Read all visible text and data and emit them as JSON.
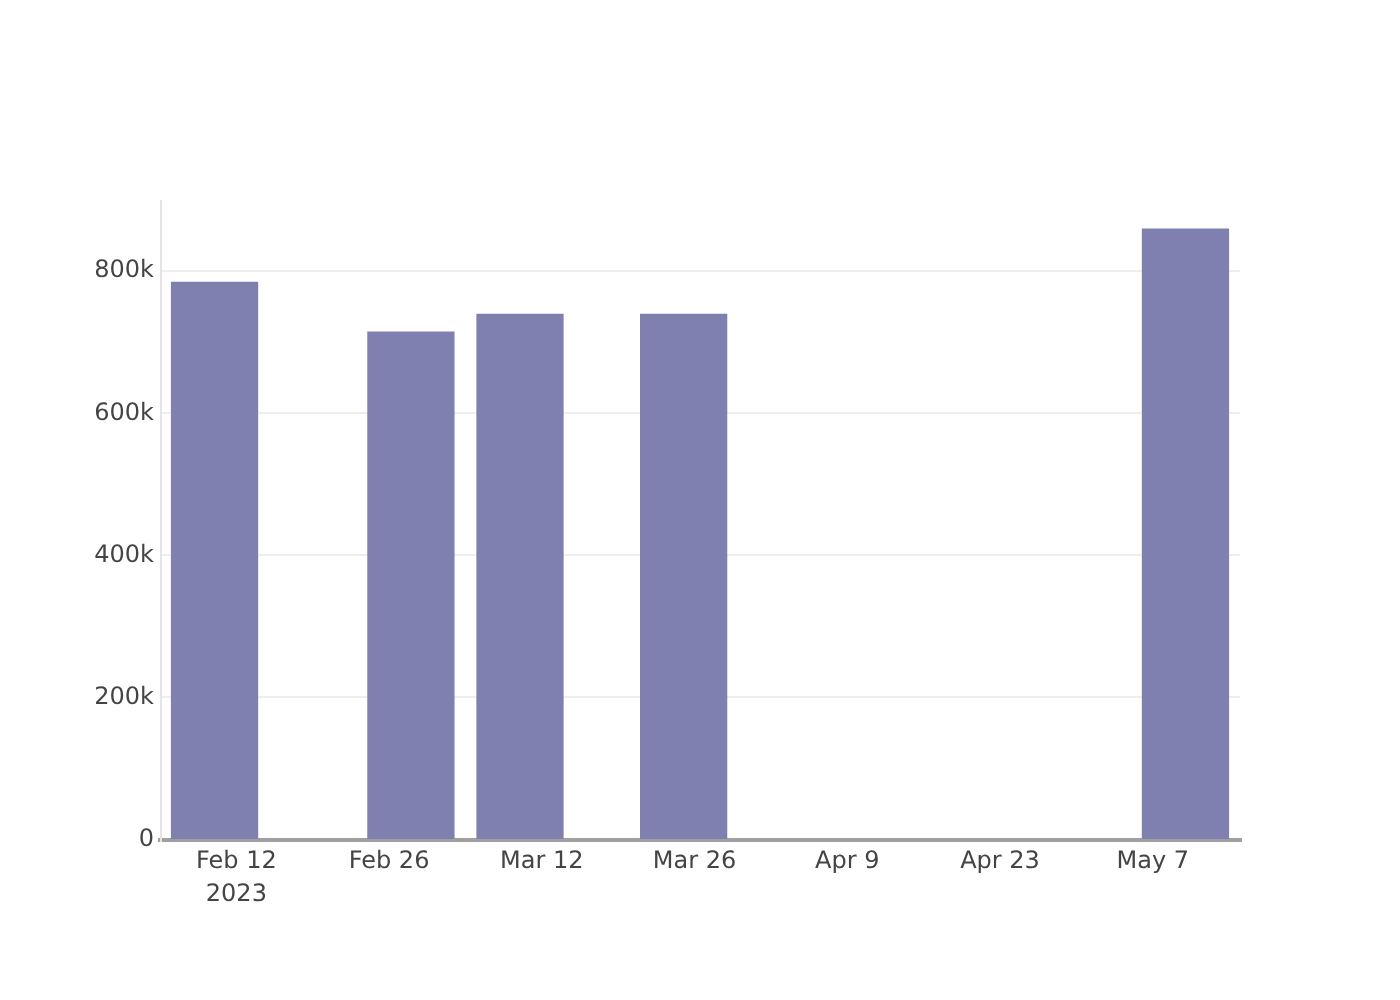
{
  "chart_data": {
    "type": "bar",
    "x": [
      "2023-02-10",
      "2023-02-28",
      "2023-03-10",
      "2023-03-25",
      "2023-05-10"
    ],
    "values": [
      785000,
      715000,
      740000,
      740000,
      860000
    ],
    "color": "#8080b0",
    "xlim": [
      "2023-02-05",
      "2023-05-15"
    ],
    "xticks": [
      {
        "value": "2023-02-12",
        "label": "Feb 12\n2023"
      },
      {
        "value": "2023-02-26",
        "label": "Feb 26"
      },
      {
        "value": "2023-03-12",
        "label": "Mar 12"
      },
      {
        "value": "2023-03-26",
        "label": "Mar 26"
      },
      {
        "value": "2023-04-09",
        "label": "Apr 9"
      },
      {
        "value": "2023-04-23",
        "label": "Apr 23"
      },
      {
        "value": "2023-05-07",
        "label": "May 7"
      }
    ],
    "ylim": [
      0,
      900000
    ],
    "yticks": [
      0,
      {
        "value": 200000,
        "label": "200k"
      },
      {
        "value": 400000,
        "label": "400k"
      },
      {
        "value": 600000,
        "label": "600k"
      },
      {
        "value": 800000,
        "label": "800k"
      }
    ],
    "grid": "y"
  }
}
